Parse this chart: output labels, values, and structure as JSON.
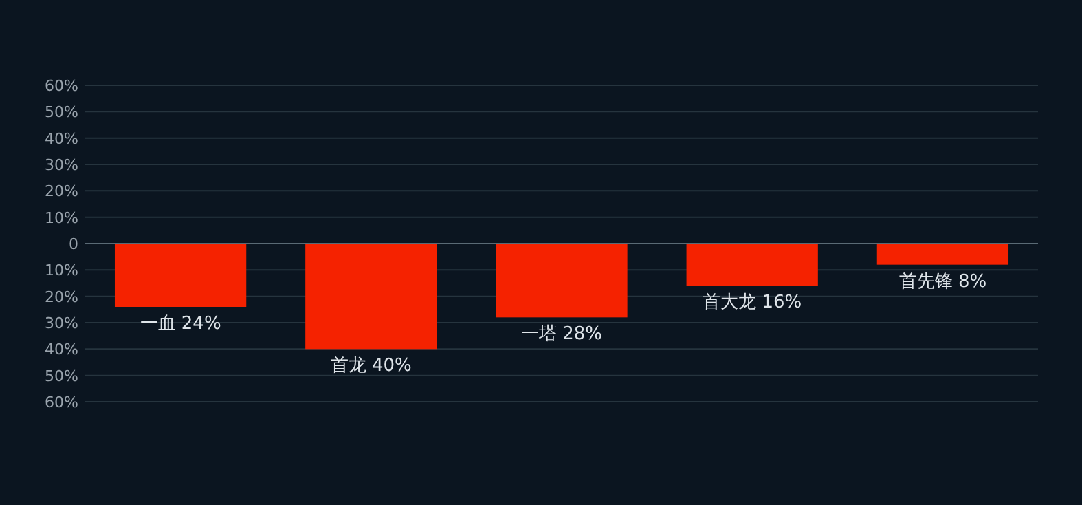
{
  "chart_data": {
    "type": "bar",
    "categories": [
      null,
      null,
      null,
      null,
      null
    ],
    "series": [
      {
        "color": "#f52200",
        "values": [
          -24,
          -40,
          -28,
          -16,
          -8
        ],
        "value_labels": [
          "一血 24%",
          "首龙 40%",
          "一塔 28%",
          "首大龙 16%",
          "首先锋 8%"
        ]
      }
    ],
    "ylim": [
      -60,
      60
    ],
    "yticks": [
      {
        "value": -60,
        "label": "60%"
      },
      {
        "value": -50,
        "label": "50%"
      },
      {
        "value": -40,
        "label": "40%"
      },
      {
        "value": -30,
        "label": "30%"
      },
      {
        "value": -20,
        "label": "20%"
      },
      {
        "value": -10,
        "label": "10%"
      },
      0,
      {
        "value": 10,
        "label": "10%"
      },
      {
        "value": 20,
        "label": "20%"
      },
      {
        "value": 30,
        "label": "30%"
      },
      {
        "value": 40,
        "label": "40%"
      },
      {
        "value": 50,
        "label": "50%"
      },
      {
        "value": 60,
        "label": "60%"
      }
    ],
    "grid": "y"
  }
}
